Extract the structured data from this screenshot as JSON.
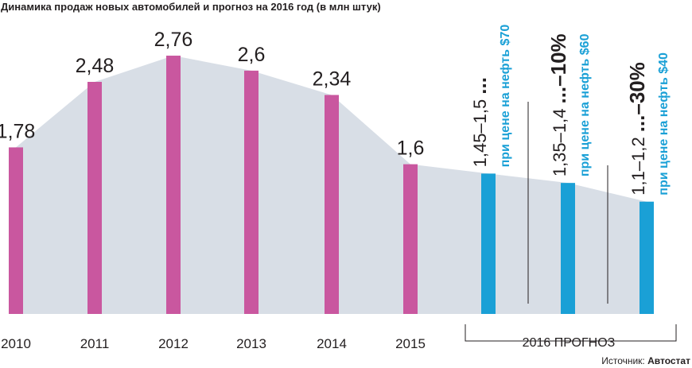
{
  "chart_data": {
    "type": "bar",
    "title": "Динамика продаж новых автомобилей и прогноз на 2016 год (в млн штук)",
    "categories": [
      "2010",
      "2011",
      "2012",
      "2013",
      "2014",
      "2015"
    ],
    "values": [
      1.78,
      2.48,
      2.76,
      2.6,
      2.34,
      1.6
    ],
    "value_labels": [
      "1,78",
      "2,48",
      "2,76",
      "2,6",
      "2,34",
      "1,6"
    ],
    "ylim": [
      0,
      3.1
    ],
    "bar_color": "#c9579f",
    "forecast_color": "#1aa0d6",
    "area_color": "#d8dee6",
    "forecast_label": "2016 ПРОГНОЗ",
    "forecast": [
      {
        "range": "1,45–1,5",
        "percent": "...",
        "condition": "при цене на нефть $70",
        "value": 1.5
      },
      {
        "range": "1,35–1,4",
        "percent": "...–10%",
        "condition": "при цене на нефть $60",
        "value": 1.4
      },
      {
        "range": "1,1–1,2",
        "percent": "...–30%",
        "condition": "при цене на нефть $40",
        "value": 1.2
      }
    ]
  },
  "source": {
    "label": "Источник:",
    "name": "Автостат"
  }
}
